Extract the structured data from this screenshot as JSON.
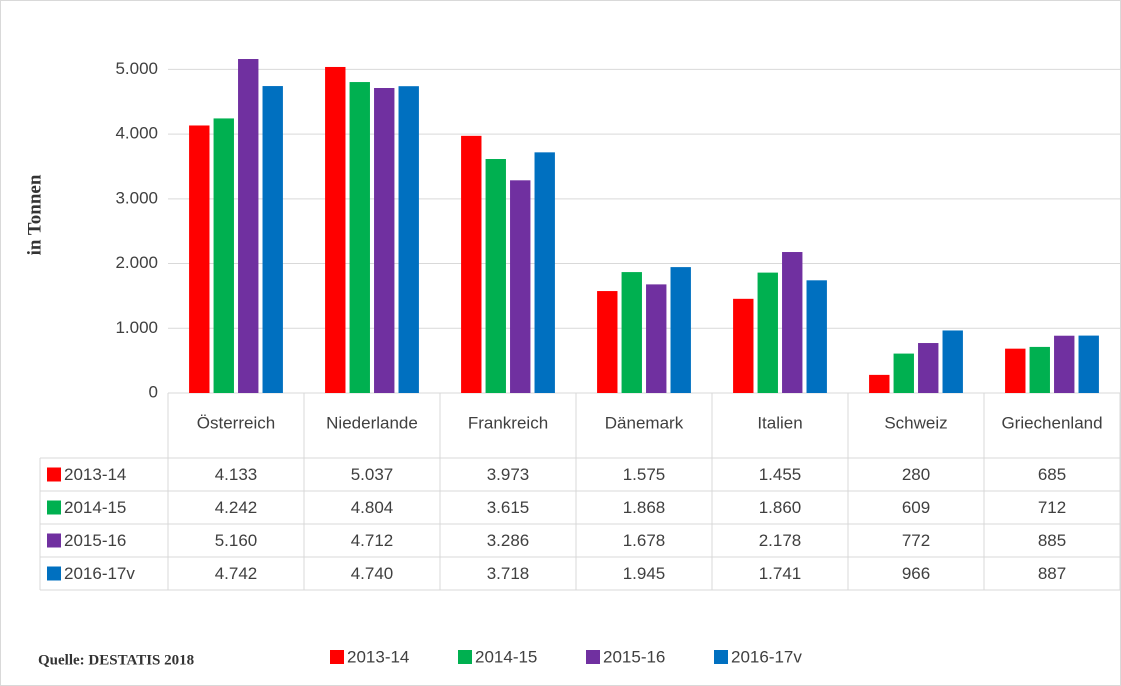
{
  "chart_data": {
    "type": "bar",
    "y_label": "in Tonnen",
    "source": "Quelle: DESTATIS 2018",
    "categories": [
      "Österreich",
      "Niederlande",
      "Frankreich",
      "Dänemark",
      "Italien",
      "Schweiz",
      "Griechenland"
    ],
    "series": [
      {
        "name": "2013-14",
        "color": "#ff0000",
        "values": [
          4133,
          5037,
          3973,
          1575,
          1455,
          280,
          685
        ],
        "value_labels": [
          "4.133",
          "5.037",
          "3.973",
          "1.575",
          "1.455",
          "280",
          "685"
        ]
      },
      {
        "name": "2014-15",
        "color": "#00b050",
        "values": [
          4242,
          4804,
          3615,
          1868,
          1860,
          609,
          712
        ],
        "value_labels": [
          "4.242",
          "4.804",
          "3.615",
          "1.868",
          "1.860",
          "609",
          "712"
        ]
      },
      {
        "name": "2015-16",
        "color": "#7030a0",
        "values": [
          5160,
          4712,
          3286,
          1678,
          2178,
          772,
          885
        ],
        "value_labels": [
          "5.160",
          "4.712",
          "3.286",
          "1.678",
          "2.178",
          "772",
          "885"
        ]
      },
      {
        "name": "2016-17v",
        "color": "#0070c0",
        "values": [
          4742,
          4740,
          3718,
          1945,
          1741,
          966,
          887
        ],
        "value_labels": [
          "4.742",
          "4.740",
          "3.718",
          "1.945",
          "1.741",
          "966",
          "887"
        ]
      }
    ],
    "ylim": [
      0,
      5500
    ],
    "yticks": [
      0,
      {
        "value": 1000,
        "label": "1.000"
      },
      {
        "value": 2000,
        "label": "2.000"
      },
      {
        "value": 3000,
        "label": "3.000"
      },
      {
        "value": 4000,
        "label": "4.000"
      },
      {
        "value": 5000,
        "label": "5.000"
      }
    ],
    "grid": true,
    "legend": "bottom"
  }
}
